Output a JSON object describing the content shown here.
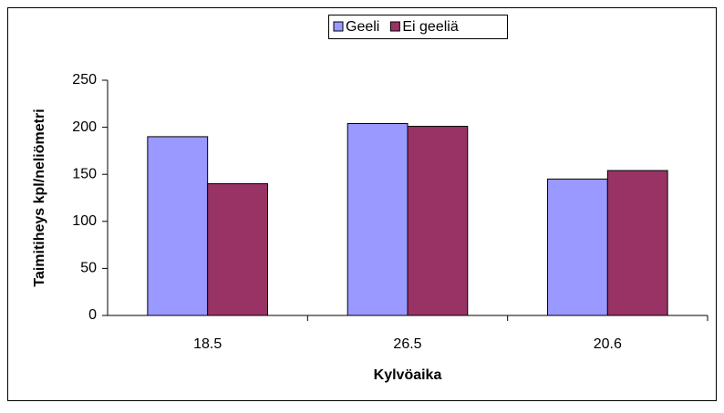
{
  "chart_data": {
    "type": "bar",
    "x_label": "Kylvöaika",
    "y_label": "Taimitiheys kpl/neliömetri",
    "categories": [
      "18.5",
      "26.5",
      "20.6"
    ],
    "series": [
      {
        "name": "Geeli",
        "color": "#9999ff",
        "values": [
          190,
          204,
          145
        ]
      },
      {
        "name": "Ei geeliä",
        "color": "#993366",
        "values": [
          140,
          201,
          154
        ]
      }
    ],
    "ylim": [
      0,
      250
    ],
    "yticks": [
      0,
      50,
      100,
      150,
      200,
      250
    ],
    "grid": false,
    "legend": "top"
  }
}
